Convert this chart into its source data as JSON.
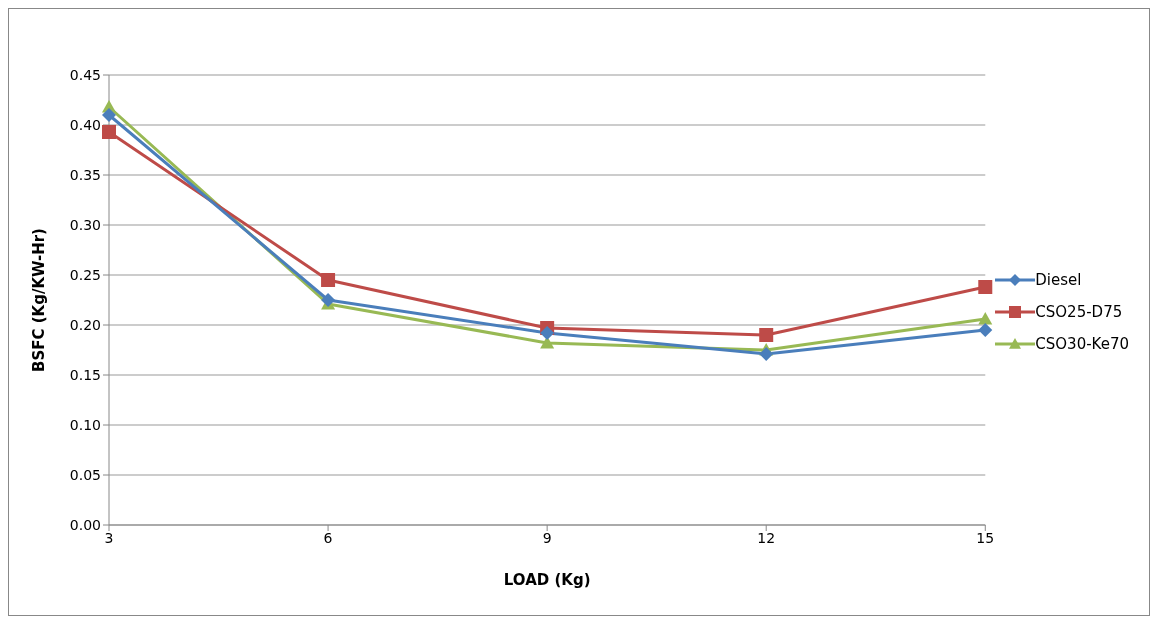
{
  "chart_data": {
    "type": "line",
    "xlabel": "LOAD (Kg)",
    "ylabel": "BSFC (Kg/KW-Hr)",
    "categories": [
      "3",
      "6",
      "9",
      "12",
      "15"
    ],
    "series": [
      {
        "name": "Diesel",
        "color": "#4a7ebb",
        "marker": "diamond",
        "values": [
          0.41,
          0.225,
          0.192,
          0.171,
          0.195
        ]
      },
      {
        "name": "CSO25-D75",
        "color": "#be4b48",
        "marker": "square",
        "values": [
          0.393,
          0.245,
          0.197,
          0.19,
          0.238
        ]
      },
      {
        "name": "CSO30-Ke70",
        "color": "#98b954",
        "marker": "triangle",
        "values": [
          0.418,
          0.221,
          0.182,
          0.175,
          0.206
        ]
      }
    ],
    "ylim": [
      0,
      0.45
    ],
    "yticks": [
      {
        "value": 0,
        "label": "0.00"
      },
      {
        "value": 0.05,
        "label": "0.05"
      },
      {
        "value": 0.1,
        "label": "0.10"
      },
      {
        "value": 0.15,
        "label": "0.15"
      },
      {
        "value": 0.2,
        "label": "0.20"
      },
      {
        "value": 0.25,
        "label": "0.25"
      },
      {
        "value": 0.3,
        "label": "0.30"
      },
      {
        "value": 0.35,
        "label": "0.35"
      },
      {
        "value": 0.4,
        "label": "0.40"
      },
      {
        "value": 0.45,
        "label": "0.45"
      }
    ],
    "grid": "y",
    "legend": "right",
    "line_style": "solid"
  }
}
